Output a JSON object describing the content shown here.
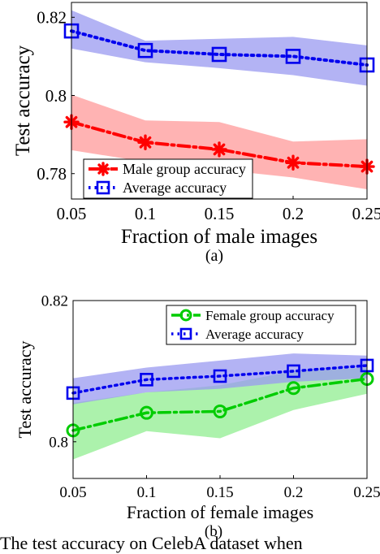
{
  "chart_data": [
    {
      "type": "line",
      "panel_label": "(a)",
      "xlabel": "Fraction of male images",
      "ylabel": "Test accuracy",
      "x": [
        0.05,
        0.1,
        0.15,
        0.2,
        0.25
      ],
      "x_ticks": [
        "0.05",
        "0.1",
        "0.15",
        "0.2",
        "0.25"
      ],
      "xlim": [
        0.05,
        0.25
      ],
      "y_ticks": [
        {
          "value": 0.78,
          "label": "0.78"
        },
        {
          "value": 0.8,
          "label": "0.8"
        },
        {
          "value": 0.82,
          "label": "0.82"
        }
      ],
      "ylim": [
        0.7735,
        0.8238
      ],
      "legend_position": "bottom-left",
      "series": [
        {
          "name": "Male group accuracy",
          "color": "#ff0000",
          "band_color": "#ff9a9a",
          "marker": "asterisk",
          "line_style": "dash-dot",
          "values": [
            0.7932,
            0.788,
            0.7862,
            0.7828,
            0.7818
          ],
          "lower": [
            0.786,
            0.783,
            0.781,
            0.779,
            0.776
          ],
          "upper": [
            0.8002,
            0.7936,
            0.7932,
            0.7882,
            0.7888
          ]
        },
        {
          "name": "Average accuracy",
          "color": "#0000ee",
          "band_color": "#9a9af0",
          "marker": "square",
          "line_style": "dotted",
          "values": [
            0.8165,
            0.8115,
            0.8105,
            0.81,
            0.8078
          ],
          "lower": [
            0.812,
            0.8085,
            0.807,
            0.8052,
            0.8025
          ],
          "upper": [
            0.8218,
            0.814,
            0.8145,
            0.815,
            0.8128
          ]
        }
      ]
    },
    {
      "type": "line",
      "panel_label": "(b)",
      "xlabel": "Fraction of female images",
      "ylabel": "Test accuracy",
      "x": [
        0.05,
        0.1,
        0.15,
        0.2,
        0.25
      ],
      "x_ticks": [
        "0.05",
        "0.1",
        "0.15",
        "0.2",
        "0.25"
      ],
      "xlim": [
        0.05,
        0.25
      ],
      "y_ticks": [
        {
          "value": 0.8,
          "label": "0.8"
        },
        {
          "value": 0.82,
          "label": "0.82"
        }
      ],
      "ylim": [
        0.7948,
        0.82
      ],
      "legend_position": "top-right",
      "series": [
        {
          "name": "Female group accuracy",
          "color": "#00cc00",
          "band_color": "#90ee90",
          "marker": "circle",
          "line_style": "dash-dot",
          "values": [
            0.8016,
            0.8041,
            0.8043,
            0.8076,
            0.8089
          ],
          "lower": [
            0.7975,
            0.8015,
            0.8005,
            0.8045,
            0.8068
          ],
          "upper": [
            0.8055,
            0.807,
            0.808,
            0.81,
            0.8105
          ]
        },
        {
          "name": "Average accuracy",
          "color": "#0000ee",
          "band_color": "#9a9af0",
          "marker": "square",
          "line_style": "dotted",
          "values": [
            0.8069,
            0.8088,
            0.8093,
            0.81,
            0.8108
          ],
          "lower": [
            0.8053,
            0.807,
            0.8075,
            0.8085,
            0.809
          ],
          "upper": [
            0.809,
            0.8105,
            0.8115,
            0.8125,
            0.8122
          ]
        }
      ]
    }
  ],
  "caption_fragment": "The test accuracy on CelebA dataset when"
}
